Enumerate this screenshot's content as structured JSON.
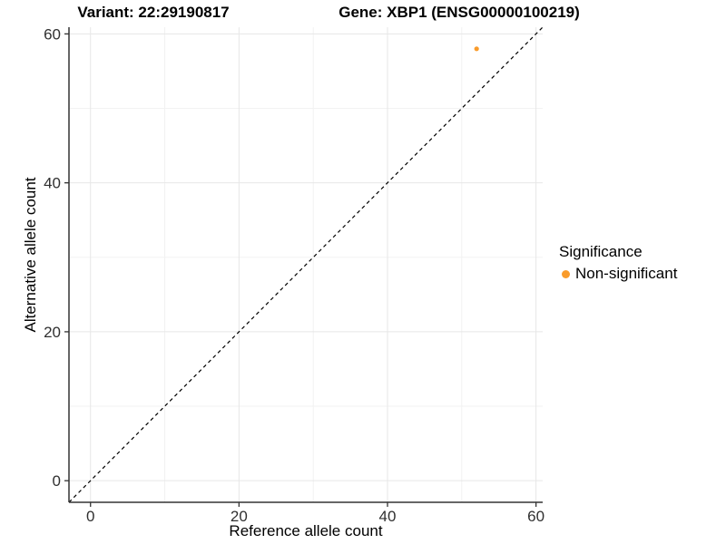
{
  "figure": {
    "background": "#FFFFFF",
    "titles": {
      "left": "Variant: 22:29190817",
      "right": "Gene: XBP1 (ENSG00000100219)"
    }
  },
  "chart_data": {
    "type": "scatter",
    "title": "Variant: 22:29190817   Gene: XBP1 (ENSG00000100219)",
    "xlabel": "Reference allele count",
    "ylabel": "Alternative allele count",
    "xlim": [
      -2.9,
      60.9
    ],
    "ylim": [
      -2.9,
      60.9
    ],
    "x_ticks": [
      0,
      20,
      40,
      60
    ],
    "y_ticks": [
      0,
      20,
      40,
      60
    ],
    "minor_grid_step": 10,
    "grid": "on",
    "legend_position": "right",
    "series": [
      {
        "name": "Non-significant",
        "color": "#F99B2B",
        "points": [
          {
            "x": 52,
            "y": 58
          }
        ]
      }
    ],
    "reference_line": {
      "kind": "identity",
      "description": "y = x diagonal",
      "style": "dashed",
      "color": "#000000"
    },
    "legend": {
      "title": "Significance",
      "entries": [
        {
          "label": "Non-significant",
          "color": "#F99B2B",
          "marker": "circle"
        }
      ]
    },
    "colors": {
      "axis_line": "#333333",
      "tick_text": "#303030",
      "grid_major": "#E7E7E7",
      "grid_minor": "#F2F2F2",
      "background": "#FFFFFF"
    }
  }
}
